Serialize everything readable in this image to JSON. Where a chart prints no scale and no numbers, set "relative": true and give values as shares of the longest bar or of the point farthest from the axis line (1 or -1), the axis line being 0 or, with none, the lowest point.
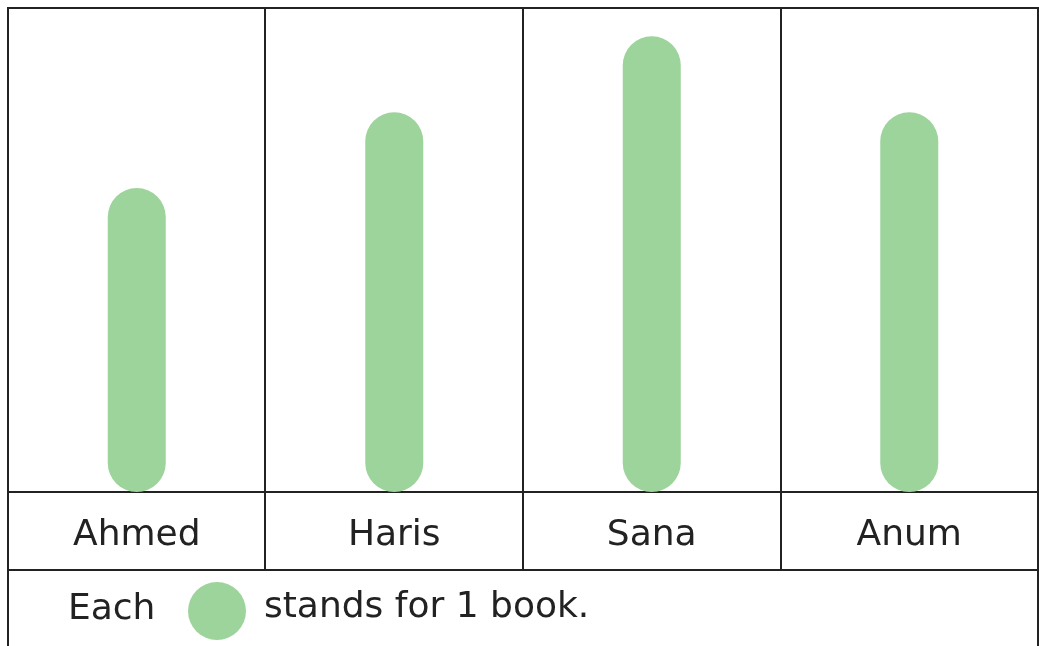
{
  "chart_data": {
    "type": "bar",
    "categories": [
      "Ahmed",
      "Haris",
      "Sana",
      "Anum"
    ],
    "values": [
      0.667,
      0.833,
      1,
      0.833
    ],
    "relative": true,
    "color": "#9dd49b",
    "annotations": [
      "Each",
      "stands for 1 book."
    ]
  }
}
